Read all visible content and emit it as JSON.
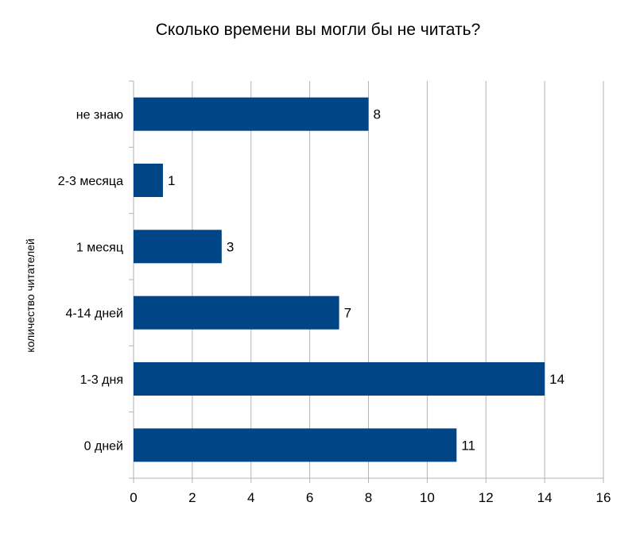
{
  "chart_data": {
    "type": "bar",
    "orientation": "horizontal",
    "title": "Сколько времени вы могли бы не читать?",
    "xlabel": "",
    "ylabel": "количество читателей",
    "categories": [
      "не знаю",
      "2-3 месяца",
      "1 месяц",
      "4-14 дней",
      "1-3 дня",
      "0 дней"
    ],
    "values": [
      8,
      1,
      3,
      7,
      14,
      11
    ],
    "xlim": [
      0,
      16
    ],
    "xticks": [
      0,
      2,
      4,
      6,
      8,
      10,
      12,
      14,
      16
    ],
    "grid": "vertical",
    "legend": "none",
    "bar_color": "#004586",
    "data_labels": [
      "8",
      "1",
      "3",
      "7",
      "14",
      "11"
    ]
  }
}
